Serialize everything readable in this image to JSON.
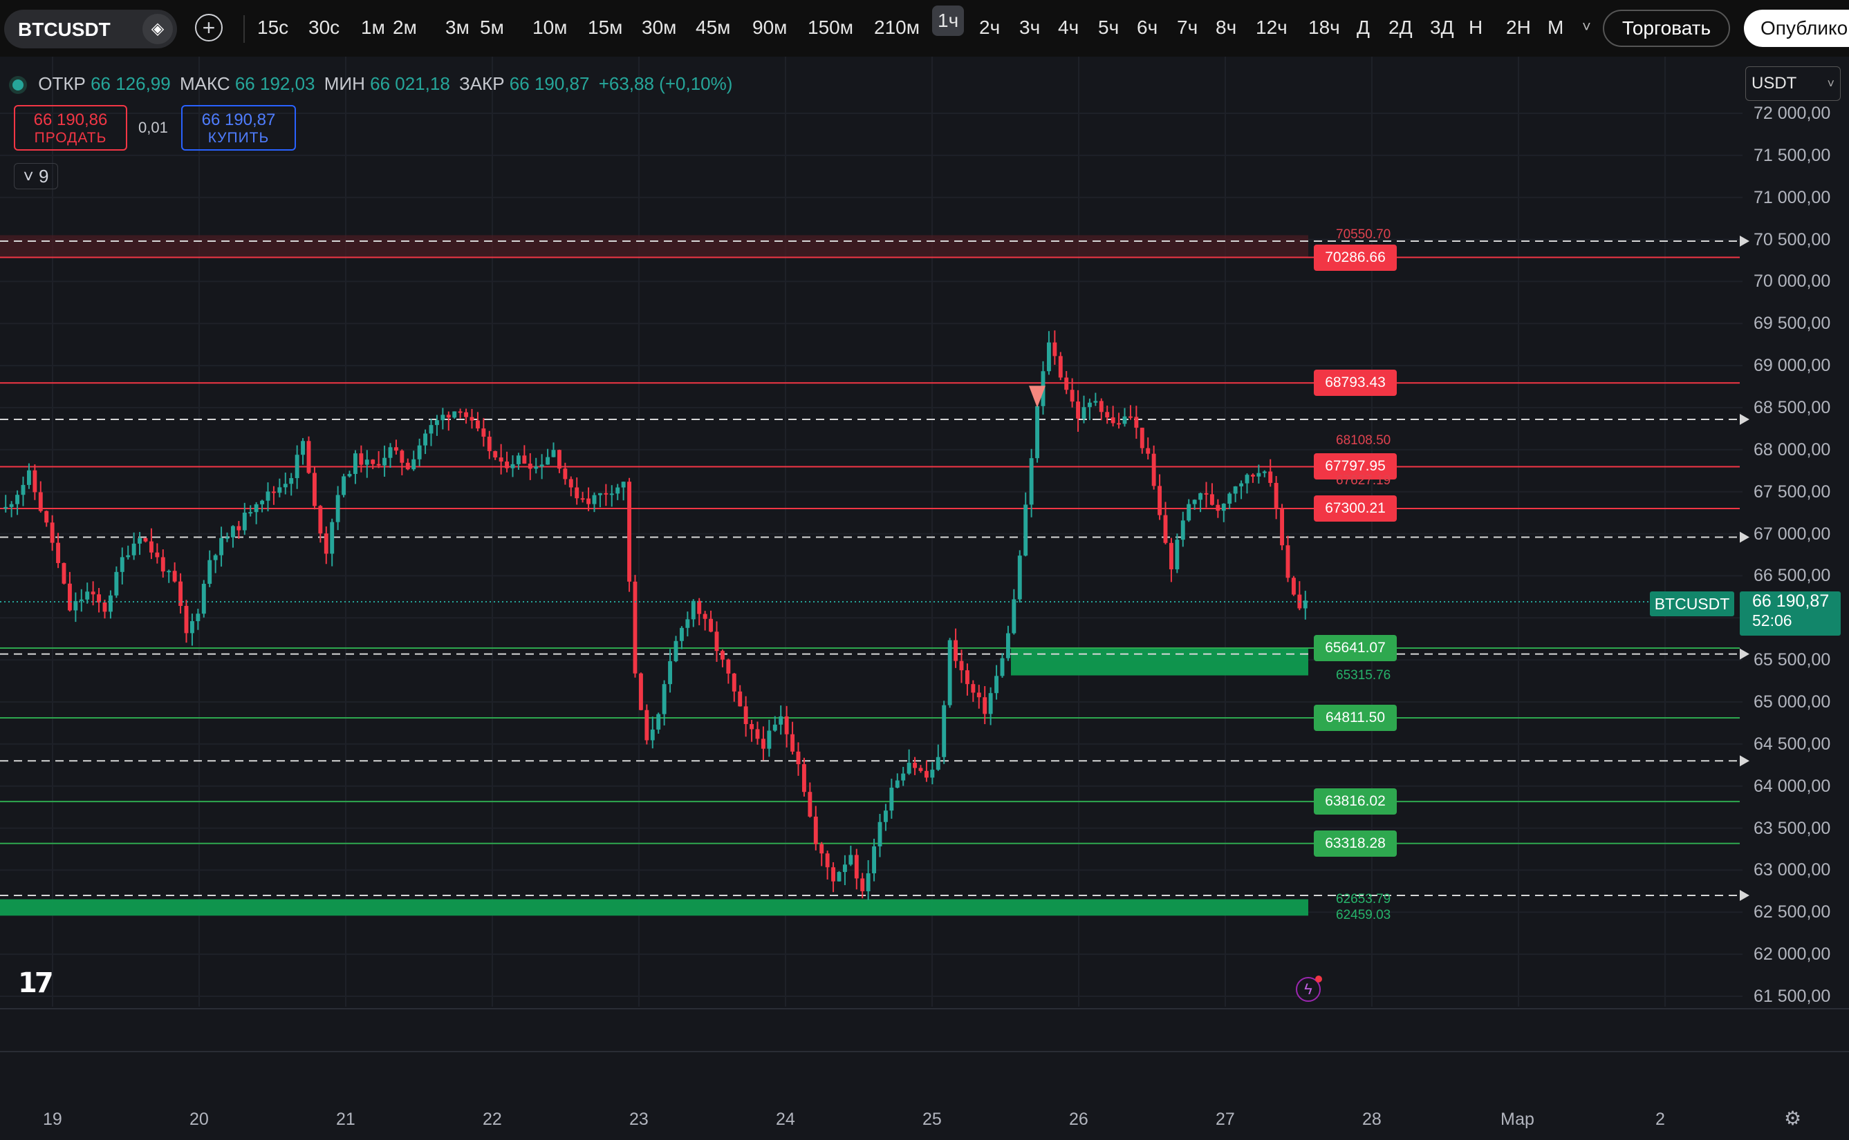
{
  "toolbar": {
    "symbol": "BTCUSDT",
    "badge_icon": "diamond-icon",
    "timeframes": [
      "15с",
      "30с",
      "1м",
      "2м",
      "3м",
      "5м",
      "10м",
      "15м",
      "30м",
      "45м",
      "90м",
      "150м",
      "210м",
      "1ч",
      "2ч",
      "3ч",
      "4ч",
      "5ч",
      "6ч",
      "7ч",
      "8ч",
      "12ч",
      "18ч",
      "Д",
      "2Д",
      "3Д",
      "Н",
      "2Н",
      "М"
    ],
    "active_timeframe": "1ч",
    "more": "˅",
    "trade_label": "Торговать",
    "publish_label": "Опублико"
  },
  "ohlc": {
    "open_label": "ОТКР",
    "open": "66 126,99",
    "high_label": "МАКС",
    "high": "66 192,03",
    "low_label": "МИН",
    "low": "66 021,18",
    "close_label": "ЗАКР",
    "close": "66 190,87",
    "change": "+63,88 (+0,10%)"
  },
  "order": {
    "sell_price": "66 190,86",
    "sell_label": "ПРОДАТЬ",
    "spread": "0,01",
    "buy_price": "66 190,87",
    "buy_label": "КУПИТЬ"
  },
  "indicators_toggle": {
    "icon": "chevron-down-icon",
    "count": "9"
  },
  "currency": "USDT",
  "price_axis": [
    "72 000,00",
    "71 500,00",
    "71 000,00",
    "70 500,00",
    "70 000,00",
    "69 500,00",
    "69 000,00",
    "68 500,00",
    "68 000,00",
    "67 500,00",
    "67 000,00",
    "66 500,00",
    "66 000,00",
    "65 500,00",
    "65 000,00",
    "64 500,00",
    "64 000,00",
    "63 500,00",
    "63 000,00",
    "62 500,00",
    "62 000,00",
    "61 500,00"
  ],
  "date_axis": [
    "19",
    "20",
    "21",
    "22",
    "23",
    "24",
    "25",
    "26",
    "27",
    "28",
    "Мар",
    "2"
  ],
  "last_price": {
    "symbol": "BTCUSDT",
    "price": "66 190,87",
    "countdown": "52:06"
  },
  "levels": {
    "red_boxes": [
      "70286.66",
      "68793.43",
      "67797.95",
      "67300.21"
    ],
    "green_boxes": [
      "65641.07",
      "64811.50",
      "63816.02",
      "63318.28"
    ],
    "small": [
      "70550.70",
      "68108.50",
      "67627.19",
      "65315.76",
      "62653.79",
      "62459.03"
    ]
  },
  "colors": {
    "up": "#26a69a",
    "down": "#f23645",
    "bg": "#15171c",
    "level_red": "#f23645",
    "level_green": "#2ea84f"
  },
  "chart_data": {
    "type": "candlestick",
    "symbol": "BTCUSDT",
    "interval": "1ч",
    "ylim": [
      61300,
      72200
    ],
    "x_labels": [
      "19",
      "20",
      "21",
      "22",
      "23",
      "24",
      "25",
      "26",
      "27",
      "28",
      "Мар",
      "2"
    ],
    "levels_red": [
      70286.66,
      68793.43,
      67797.95,
      67300.21
    ],
    "levels_green": [
      65641.07,
      64811.5,
      63816.02,
      63318.28
    ],
    "dashed_levels": [
      70480,
      68360,
      66960,
      65570,
      64300,
      62700
    ],
    "zones": [
      {
        "from": 65315.76,
        "to": 65641.07,
        "color": "green"
      },
      {
        "from": 62459.03,
        "to": 62653.79,
        "color": "green"
      },
      {
        "from": 70286.66,
        "to": 70550.7,
        "color": "red"
      }
    ],
    "close_path": [
      [
        0,
        67300
      ],
      [
        4,
        67700
      ],
      [
        8,
        66900
      ],
      [
        11,
        66100
      ],
      [
        14,
        66300
      ],
      [
        17,
        66100
      ],
      [
        20,
        66700
      ],
      [
        23,
        67000
      ],
      [
        26,
        66700
      ],
      [
        29,
        66400
      ],
      [
        31,
        65800
      ],
      [
        33,
        66100
      ],
      [
        35,
        66700
      ],
      [
        37,
        66900
      ],
      [
        40,
        67100
      ],
      [
        43,
        67400
      ],
      [
        46,
        67500
      ],
      [
        49,
        67700
      ],
      [
        51,
        68100
      ],
      [
        53,
        67300
      ],
      [
        55,
        66800
      ],
      [
        57,
        67500
      ],
      [
        60,
        67900
      ],
      [
        63,
        67800
      ],
      [
        66,
        68000
      ],
      [
        69,
        67800
      ],
      [
        72,
        68200
      ],
      [
        75,
        68400
      ],
      [
        78,
        68500
      ],
      [
        80,
        68300
      ],
      [
        82,
        68100
      ],
      [
        85,
        67800
      ],
      [
        88,
        67900
      ],
      [
        91,
        67800
      ],
      [
        94,
        68000
      ],
      [
        97,
        67500
      ],
      [
        100,
        67400
      ],
      [
        103,
        67500
      ],
      [
        106,
        67600
      ],
      [
        108,
        65300
      ],
      [
        110,
        64500
      ],
      [
        112,
        64900
      ],
      [
        115,
        65700
      ],
      [
        118,
        66200
      ],
      [
        121,
        65800
      ],
      [
        124,
        65300
      ],
      [
        127,
        64700
      ],
      [
        130,
        64500
      ],
      [
        133,
        64800
      ],
      [
        136,
        64300
      ],
      [
        139,
        63300
      ],
      [
        142,
        62900
      ],
      [
        145,
        63200
      ],
      [
        147,
        62700
      ],
      [
        149,
        63300
      ],
      [
        152,
        64000
      ],
      [
        155,
        64300
      ],
      [
        158,
        64100
      ],
      [
        160,
        64300
      ],
      [
        162,
        65700
      ],
      [
        165,
        65200
      ],
      [
        168,
        64900
      ],
      [
        171,
        65500
      ],
      [
        173,
        66200
      ],
      [
        175,
        67300
      ],
      [
        177,
        68500
      ],
      [
        179,
        69300
      ],
      [
        181,
        68900
      ],
      [
        184,
        68400
      ],
      [
        187,
        68600
      ],
      [
        190,
        68300
      ],
      [
        193,
        68400
      ],
      [
        196,
        67900
      ],
      [
        198,
        67200
      ],
      [
        200,
        66600
      ],
      [
        202,
        67200
      ],
      [
        205,
        67500
      ],
      [
        208,
        67300
      ],
      [
        211,
        67600
      ],
      [
        214,
        67700
      ],
      [
        216,
        67800
      ],
      [
        218,
        67300
      ],
      [
        220,
        66500
      ],
      [
        222,
        66100
      ],
      [
        223,
        66190
      ]
    ],
    "last_price": 66190.87
  }
}
